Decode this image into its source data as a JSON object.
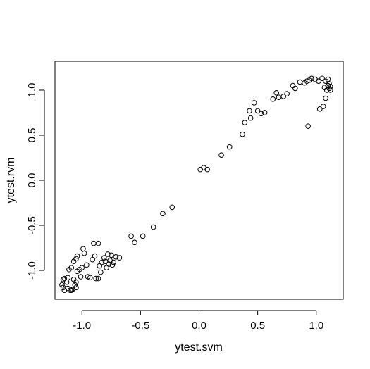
{
  "chart_data": {
    "type": "scatter",
    "title": "",
    "xlabel": "ytest.svm",
    "ylabel": "ytest.rvm",
    "xlim": [
      -1.23,
      1.23
    ],
    "ylim": [
      -1.32,
      1.32
    ],
    "xticks": [
      -1.0,
      -0.5,
      0.0,
      0.5,
      1.0
    ],
    "xtick_labels": [
      "-1.0",
      "-0.5",
      "0.0",
      "0.5",
      "1.0"
    ],
    "yticks": [
      -1.0,
      -0.5,
      0.0,
      0.5,
      1.0
    ],
    "ytick_labels": [
      "-1.0",
      "-0.5",
      "0.0",
      "0.5",
      "1.0"
    ],
    "marker": "open-circle",
    "grid": false,
    "points": [
      [
        -1.17,
        -1.16
      ],
      [
        -1.16,
        -1.19
      ],
      [
        -1.15,
        -1.22
      ],
      [
        -1.16,
        -1.1
      ],
      [
        -1.15,
        -1.09
      ],
      [
        -1.13,
        -1.13
      ],
      [
        -1.12,
        -1.2
      ],
      [
        -1.12,
        -1.08
      ],
      [
        -1.11,
        -0.99
      ],
      [
        -1.1,
        -1.22
      ],
      [
        -1.09,
        -1.22
      ],
      [
        -1.08,
        -1.21
      ],
      [
        -1.09,
        -0.97
      ],
      [
        -1.07,
        -1.1
      ],
      [
        -1.06,
        -1.16
      ],
      [
        -1.05,
        -1.19
      ],
      [
        -1.05,
        -1.13
      ],
      [
        -1.07,
        -0.9
      ],
      [
        -1.05,
        -0.87
      ],
      [
        -1.04,
        -1.01
      ],
      [
        -1.04,
        -0.84
      ],
      [
        -1.02,
        -0.99
      ],
      [
        -1.0,
        -0.97
      ],
      [
        -1.01,
        -1.07
      ],
      [
        -0.99,
        -0.76
      ],
      [
        -0.98,
        -0.81
      ],
      [
        -0.96,
        -0.94
      ],
      [
        -0.95,
        -1.07
      ],
      [
        -0.93,
        -1.08
      ],
      [
        -0.91,
        -0.88
      ],
      [
        -0.9,
        -0.7
      ],
      [
        -0.89,
        -0.84
      ],
      [
        -0.88,
        -1.09
      ],
      [
        -0.86,
        -1.09
      ],
      [
        -0.86,
        -0.7
      ],
      [
        -0.85,
        -0.95
      ],
      [
        -0.84,
        -1.02
      ],
      [
        -0.83,
        -0.91
      ],
      [
        -0.81,
        -0.86
      ],
      [
        -0.8,
        -0.9
      ],
      [
        -0.79,
        -0.97
      ],
      [
        -0.78,
        -0.82
      ],
      [
        -0.77,
        -0.93
      ],
      [
        -0.76,
        -0.89
      ],
      [
        -0.75,
        -0.83
      ],
      [
        -0.74,
        -0.94
      ],
      [
        -0.73,
        -0.91
      ],
      [
        -0.71,
        -0.85
      ],
      [
        -0.68,
        -0.86
      ],
      [
        -0.58,
        -0.62
      ],
      [
        -0.55,
        -0.69
      ],
      [
        -0.48,
        -0.62
      ],
      [
        -0.39,
        -0.52
      ],
      [
        -0.31,
        -0.37
      ],
      [
        -0.23,
        -0.3
      ],
      [
        0.01,
        0.12
      ],
      [
        0.04,
        0.14
      ],
      [
        0.07,
        0.12
      ],
      [
        0.19,
        0.28
      ],
      [
        0.26,
        0.37
      ],
      [
        0.37,
        0.51
      ],
      [
        0.39,
        0.64
      ],
      [
        0.43,
        0.77
      ],
      [
        0.44,
        0.69
      ],
      [
        0.47,
        0.86
      ],
      [
        0.5,
        0.77
      ],
      [
        0.53,
        0.74
      ],
      [
        0.56,
        0.75
      ],
      [
        0.63,
        0.9
      ],
      [
        0.66,
        0.97
      ],
      [
        0.68,
        0.92
      ],
      [
        0.72,
        0.93
      ],
      [
        0.75,
        0.96
      ],
      [
        0.8,
        1.05
      ],
      [
        0.82,
        1.02
      ],
      [
        0.86,
        1.09
      ],
      [
        0.9,
        1.08
      ],
      [
        0.92,
        1.1
      ],
      [
        0.94,
        1.11
      ],
      [
        0.93,
        0.6
      ],
      [
        0.96,
        1.13
      ],
      [
        0.99,
        1.12
      ],
      [
        1.02,
        1.1
      ],
      [
        1.03,
        0.79
      ],
      [
        1.05,
        1.13
      ],
      [
        1.06,
        0.82
      ],
      [
        1.07,
        1.03
      ],
      [
        1.08,
        1.1
      ],
      [
        1.08,
        0.91
      ],
      [
        1.09,
        1.0
      ],
      [
        1.1,
        1.05
      ],
      [
        1.1,
        1.12
      ],
      [
        1.11,
        1.02
      ],
      [
        1.11,
        1.07
      ],
      [
        1.12,
        1.0
      ],
      [
        1.12,
        1.04
      ]
    ]
  }
}
